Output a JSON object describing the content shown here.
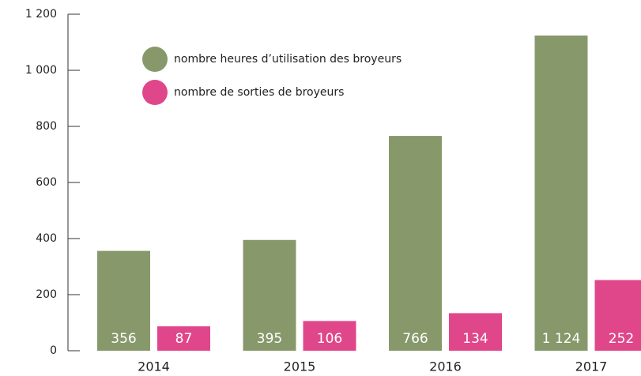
{
  "chart_data": {
    "type": "bar",
    "categories": [
      "2014",
      "2015",
      "2016",
      "2017"
    ],
    "series": [
      {
        "name": "nombre heures d’utilisation des broyeurs",
        "color": "#87996b",
        "values": [
          356,
          395,
          766,
          1124
        ],
        "value_labels": [
          "356",
          "395",
          "766",
          "1 124"
        ]
      },
      {
        "name": "nombre de sorties de broyeurs",
        "color": "#e0478a",
        "values": [
          87,
          106,
          134,
          252
        ]
      }
    ],
    "ylim": [
      0,
      1200
    ],
    "yticks": [
      0,
      200,
      400,
      600,
      800,
      {
        "value": 1000,
        "label": "1 000"
      },
      {
        "value": 1200,
        "label": "1 200"
      }
    ],
    "legend": "upper left"
  }
}
